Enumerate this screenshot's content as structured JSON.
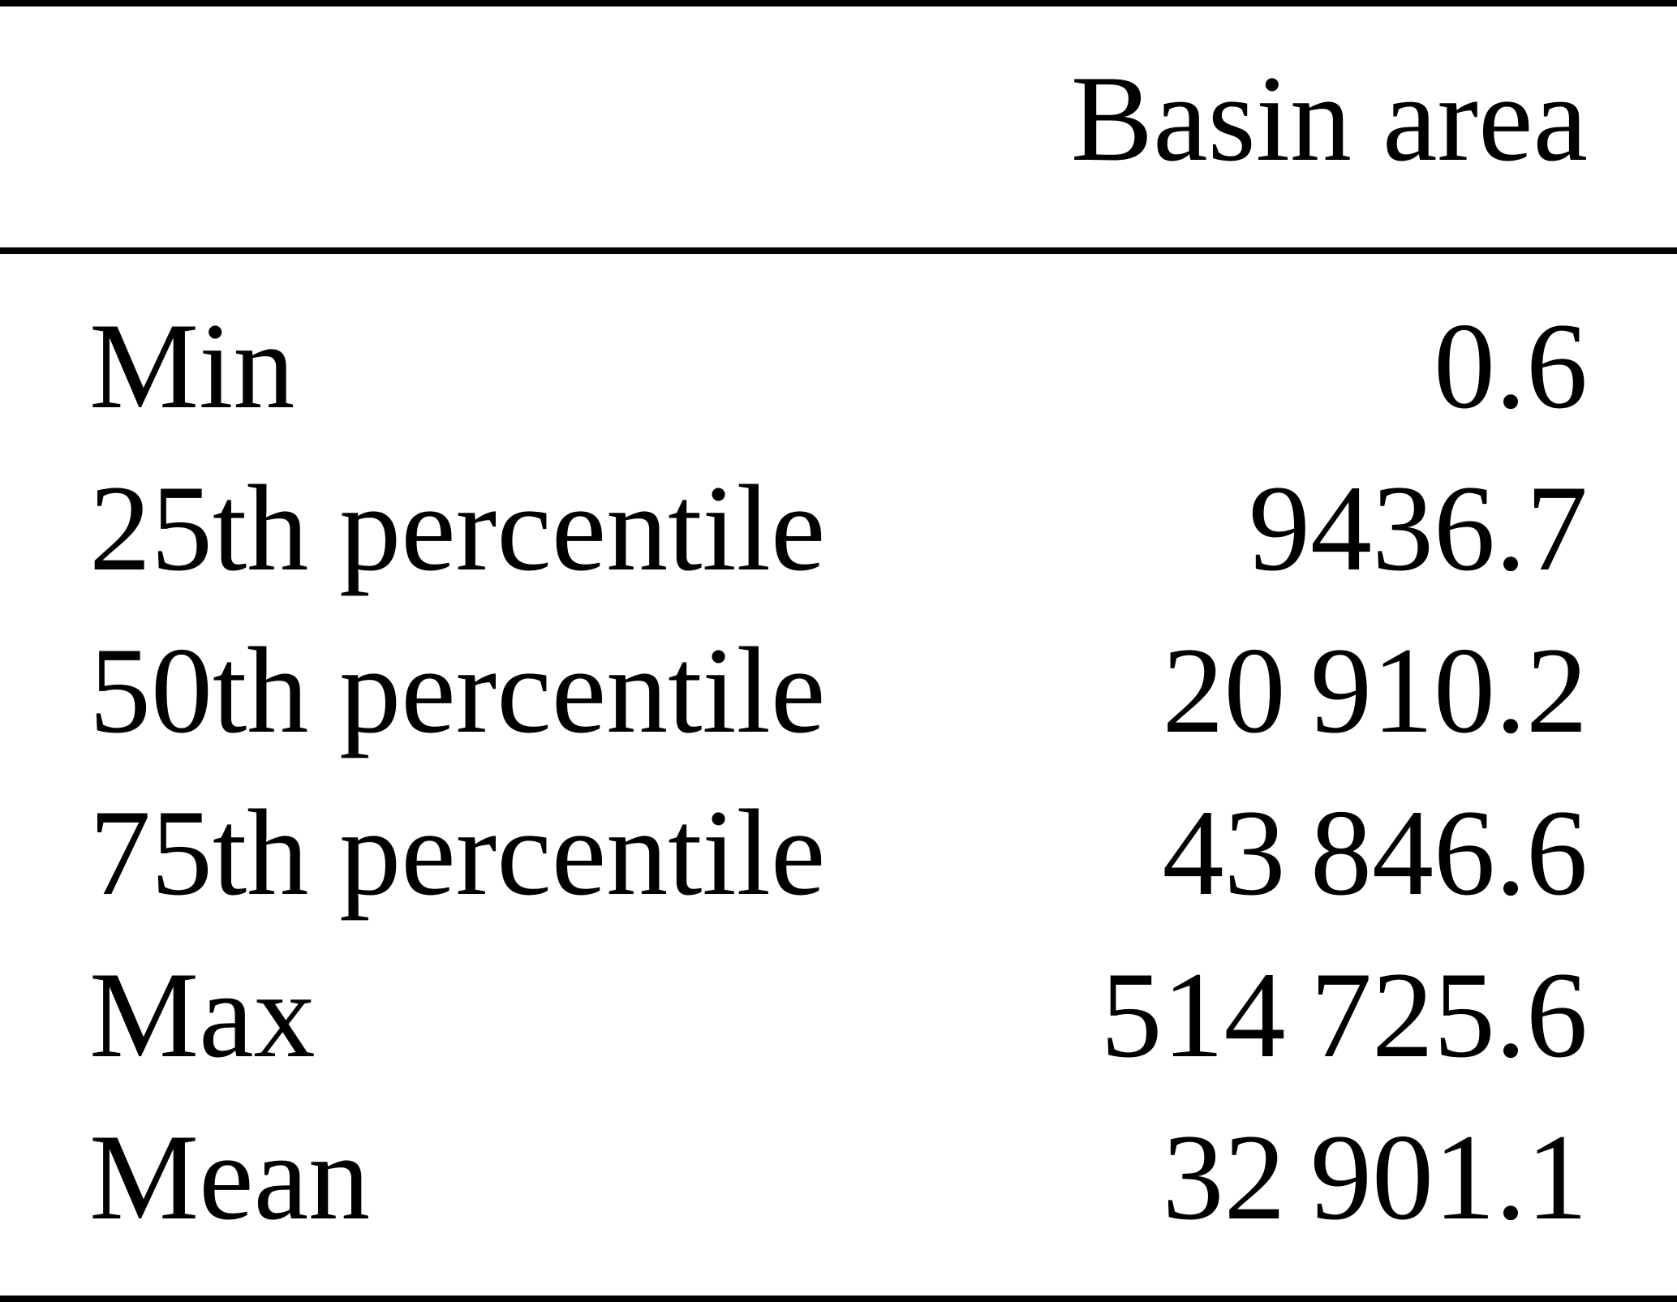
{
  "table": {
    "header": {
      "label_column": "",
      "value_column": "Basin area"
    },
    "rows": [
      {
        "label": "Min",
        "value": "0.6"
      },
      {
        "label": "25th percentile",
        "value": "9436.7"
      },
      {
        "label": "50th percentile",
        "value": "20 910.2"
      },
      {
        "label": "75th percentile",
        "value": "43 846.6"
      },
      {
        "label": "Max",
        "value": "514 725.6"
      },
      {
        "label": "Mean",
        "value": "32 901.1"
      }
    ]
  },
  "colors": {
    "background": "#ffffff",
    "text": "#000000",
    "rule": "#000000"
  }
}
